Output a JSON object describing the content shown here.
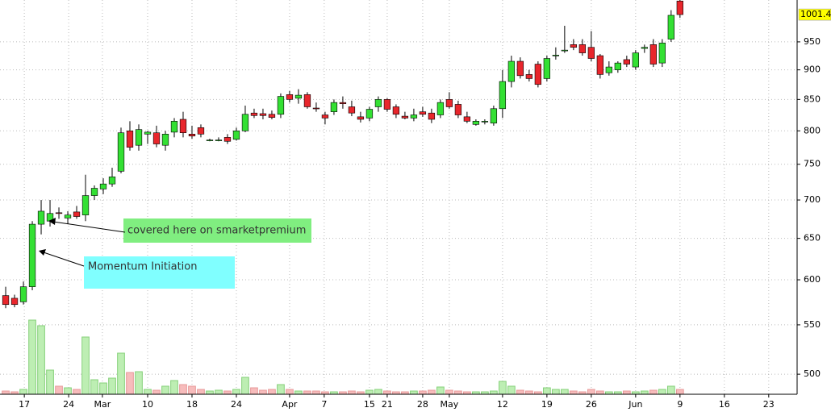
{
  "chart_data": {
    "type": "candlestick",
    "log_scale": true,
    "grid": true,
    "up_color": "#33e033",
    "down_color": "#e8262c",
    "volume_up_color": "#bdeeb3",
    "volume_down_color": "#f7bcbc",
    "ylim": [
      481,
      1030
    ],
    "yticks": [
      500,
      550,
      600,
      650,
      700,
      750,
      800,
      850,
      900,
      950
    ],
    "vlim": [
      0,
      100
    ],
    "xlim": [
      -0.64,
      89.2
    ],
    "xticks": [
      {
        "value": 2.1,
        "label": "17"
      },
      {
        "value": 7.1,
        "label": "24"
      },
      {
        "value": 10.9,
        "label": "Mar"
      },
      {
        "value": 16,
        "label": "10"
      },
      {
        "value": 21,
        "label": "18"
      },
      {
        "value": 26,
        "label": "24"
      },
      {
        "value": 32,
        "label": "Apr"
      },
      {
        "value": 35.9,
        "label": "7"
      },
      {
        "value": 41,
        "label": "15"
      },
      {
        "value": 43,
        "label": "21"
      },
      {
        "value": 47,
        "label": "28"
      },
      {
        "value": 50,
        "label": "May"
      },
      {
        "value": 56,
        "label": "12"
      },
      {
        "value": 61,
        "label": "19"
      },
      {
        "value": 66,
        "label": "26"
      },
      {
        "value": 71,
        "label": "Jun"
      },
      {
        "value": 76,
        "label": "9"
      },
      {
        "value": 81,
        "label": "16"
      },
      {
        "value": 86,
        "label": "23"
      }
    ],
    "open": [
      582,
      579,
      575,
      592,
      668,
      672,
      683,
      676,
      684,
      680,
      706,
      715,
      722,
      740,
      800,
      778,
      795,
      797,
      778,
      798,
      818,
      795,
      805,
      786,
      786,
      790,
      787,
      800,
      828,
      827,
      826,
      826,
      858,
      852,
      858,
      836,
      825,
      830,
      845,
      838,
      822,
      820,
      838,
      850,
      838,
      823,
      820,
      830,
      828,
      825,
      850,
      842,
      822,
      810,
      814,
      812,
      835,
      880,
      915,
      892,
      910,
      885,
      925,
      935,
      945,
      945,
      940,
      925,
      895,
      900,
      918,
      905,
      938,
      945,
      912,
      955,
      1028
    ],
    "high": [
      592,
      583,
      598,
      672,
      700,
      700,
      690,
      685,
      692,
      735,
      720,
      730,
      745,
      805,
      815,
      810,
      800,
      808,
      800,
      820,
      830,
      808,
      810,
      788,
      790,
      795,
      805,
      840,
      835,
      835,
      832,
      860,
      864,
      867,
      862,
      845,
      830,
      850,
      855,
      848,
      830,
      838,
      855,
      852,
      842,
      830,
      835,
      838,
      835,
      850,
      862,
      848,
      830,
      818,
      818,
      840,
      900,
      925,
      922,
      900,
      915,
      925,
      940,
      980,
      955,
      955,
      970,
      928,
      915,
      915,
      925,
      935,
      945,
      955,
      955,
      1010,
      1030
    ],
    "low": [
      568,
      569,
      572,
      588,
      655,
      665,
      675,
      668,
      675,
      672,
      700,
      708,
      718,
      737,
      770,
      770,
      780,
      775,
      770,
      790,
      790,
      788,
      790,
      784,
      784,
      780,
      785,
      798,
      820,
      818,
      818,
      820,
      845,
      843,
      835,
      830,
      810,
      825,
      835,
      823,
      813,
      815,
      830,
      830,
      820,
      818,
      815,
      822,
      812,
      820,
      835,
      820,
      812,
      808,
      810,
      808,
      820,
      870,
      885,
      880,
      870,
      880,
      918,
      930,
      935,
      925,
      915,
      885,
      890,
      895,
      905,
      900,
      930,
      905,
      905,
      950,
      995
    ],
    "close": [
      572,
      572,
      592,
      668,
      685,
      682,
      682,
      680,
      678,
      706,
      716,
      722,
      732,
      797,
      775,
      802,
      798,
      780,
      795,
      815,
      797,
      792,
      795,
      786,
      786,
      784,
      800,
      826,
      824,
      824,
      821,
      855,
      850,
      857,
      838,
      835,
      820,
      845,
      843,
      828,
      818,
      834,
      850,
      834,
      826,
      820,
      825,
      826,
      818,
      845,
      838,
      825,
      815,
      815,
      815,
      835,
      880,
      915,
      890,
      885,
      875,
      920,
      926,
      935,
      940,
      930,
      920,
      892,
      905,
      912,
      910,
      930,
      940,
      910,
      948,
      1000,
      1001.4
    ],
    "volume": [
      4,
      3,
      6,
      92,
      85,
      30,
      10,
      8,
      6,
      71,
      18,
      14,
      20,
      51,
      27,
      28,
      6,
      5,
      10,
      17,
      12,
      10,
      6,
      4,
      5,
      4,
      6,
      21,
      8,
      5,
      6,
      12,
      6,
      4,
      4,
      4,
      3,
      3,
      3,
      4,
      3,
      5,
      6,
      4,
      3,
      3,
      4,
      4,
      5,
      9,
      5,
      4,
      3,
      3,
      3,
      4,
      16,
      10,
      5,
      4,
      3,
      8,
      6,
      6,
      4,
      3,
      6,
      4,
      3,
      3,
      4,
      3,
      4,
      5,
      6,
      10,
      6
    ],
    "annotations": [
      {
        "text": "covered here on smarketpremium"
      },
      {
        "text": "Momentum Initiation"
      }
    ]
  }
}
